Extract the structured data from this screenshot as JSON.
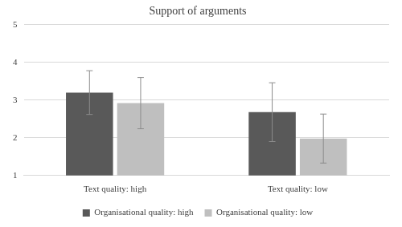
{
  "chart_data": {
    "type": "bar",
    "title": "Support of arguments",
    "categories": [
      "Text quality: high",
      "Text quality: low"
    ],
    "series": [
      {
        "name": "Organisational quality: high",
        "color": "#595959",
        "values": [
          3.2,
          2.68
        ],
        "errors": [
          0.58,
          0.78
        ]
      },
      {
        "name": "Organisational quality: low",
        "color": "#bfbfbf",
        "values": [
          2.92,
          1.98
        ],
        "errors": [
          0.68,
          0.65
        ]
      }
    ],
    "ylim": [
      1,
      5
    ],
    "yticks": [
      1,
      2,
      3,
      4,
      5
    ],
    "grid": true,
    "legend": "bottom"
  }
}
